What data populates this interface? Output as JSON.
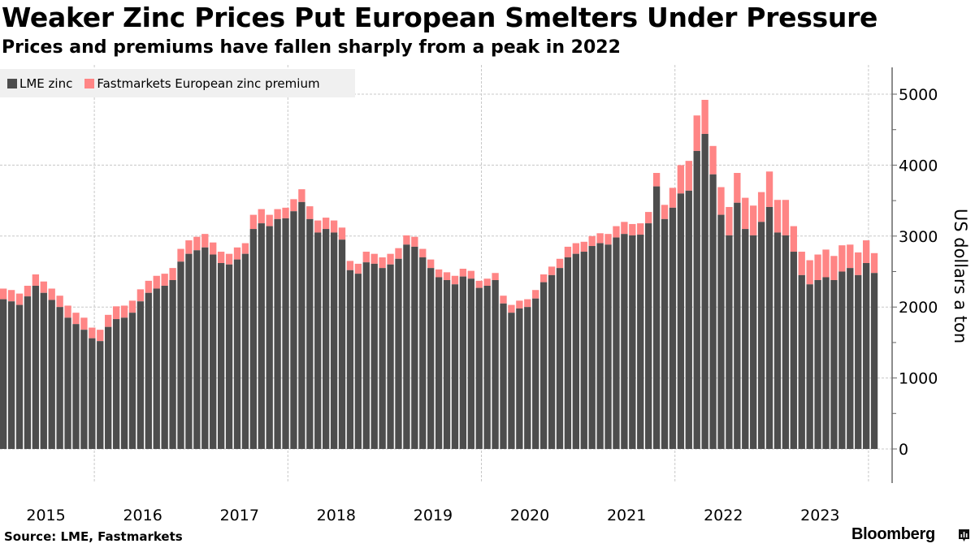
{
  "title": "Weaker Zinc Prices Put European Smelters Under Pressure",
  "subtitle": "Prices and premiums have fallen sharply from a peak in 2022",
  "source": "Source: LME, Fastmarkets",
  "brand": "Bloomberg",
  "colors": {
    "lme": "#4d4d4d",
    "premium": "#ff8585",
    "legend_bg": "#f0f0f0",
    "grid": "#c8c8c8",
    "axis": "#666666"
  },
  "chart_data": {
    "type": "bar",
    "stacked": true,
    "title": "Weaker Zinc Prices Put European Smelters Under Pressure",
    "subtitle": "Prices and premiums have fallen sharply from a peak in 2022",
    "xlabel": "",
    "ylabel": "US dollars a ton",
    "ylim": [
      0,
      5400
    ],
    "yticks": [
      0,
      1000,
      2000,
      3000,
      4000,
      5000
    ],
    "xtick_labels": [
      "2015",
      "2016",
      "2017",
      "2018",
      "2019",
      "2020",
      "2021",
      "2022",
      "2023"
    ],
    "x_start": "2015-01",
    "x_end": "2024-01",
    "grid": true,
    "legend_position": "top-left",
    "series": [
      {
        "name": "LME zinc",
        "values": [
          2110,
          2080,
          2030,
          2150,
          2300,
          2200,
          2100,
          2000,
          1850,
          1760,
          1680,
          1560,
          1520,
          1720,
          1830,
          1850,
          1920,
          2080,
          2200,
          2260,
          2300,
          2380,
          2640,
          2750,
          2800,
          2840,
          2740,
          2620,
          2600,
          2670,
          2750,
          3100,
          3180,
          3140,
          3240,
          3250,
          3350,
          3480,
          3240,
          3050,
          3100,
          3050,
          2950,
          2520,
          2470,
          2630,
          2610,
          2550,
          2600,
          2680,
          2880,
          2850,
          2700,
          2550,
          2420,
          2380,
          2320,
          2430,
          2400,
          2270,
          2300,
          2380,
          2050,
          1920,
          1980,
          2000,
          2120,
          2350,
          2450,
          2550,
          2700,
          2750,
          2780,
          2860,
          2900,
          2880,
          2980,
          3030,
          3010,
          3020,
          3180,
          3700,
          3240,
          3400,
          3600,
          3640,
          4200,
          4440,
          3870,
          3300,
          3010,
          3470,
          3100,
          3010,
          3200,
          3410,
          3050,
          3010,
          2780,
          2450,
          2320,
          2380,
          2420,
          2380,
          2500,
          2550,
          2450,
          2620,
          2480
        ],
        "color": "#4d4d4d"
      },
      {
        "name": "Fastmarkets European zinc premium",
        "values": [
          150,
          160,
          160,
          150,
          160,
          160,
          160,
          160,
          170,
          160,
          170,
          150,
          160,
          170,
          180,
          170,
          170,
          170,
          170,
          180,
          170,
          170,
          180,
          190,
          190,
          190,
          170,
          160,
          150,
          170,
          150,
          200,
          200,
          160,
          140,
          150,
          170,
          180,
          180,
          170,
          160,
          170,
          170,
          130,
          140,
          150,
          140,
          150,
          150,
          150,
          130,
          140,
          120,
          120,
          110,
          110,
          120,
          110,
          110,
          100,
          100,
          100,
          110,
          110,
          110,
          110,
          120,
          110,
          120,
          130,
          150,
          150,
          140,
          140,
          140,
          150,
          160,
          170,
          160,
          160,
          160,
          190,
          200,
          280,
          400,
          420,
          500,
          480,
          400,
          390,
          400,
          420,
          440,
          420,
          420,
          500,
          460,
          500,
          360,
          330,
          340,
          360,
          390,
          340,
          370,
          330,
          320,
          320,
          280
        ],
        "color": "#ff8585"
      }
    ]
  },
  "legend": [
    {
      "label": "LME zinc",
      "color": "#4d4d4d"
    },
    {
      "label": "Fastmarkets European zinc premium",
      "color": "#ff8585"
    }
  ],
  "axis": {
    "y_label": "US dollars a ton",
    "y_ticks": [
      "0",
      "1000",
      "2000",
      "3000",
      "4000",
      "5000"
    ],
    "x_ticks": [
      "2015",
      "2016",
      "2017",
      "2018",
      "2019",
      "2020",
      "2021",
      "2022",
      "2023"
    ]
  }
}
